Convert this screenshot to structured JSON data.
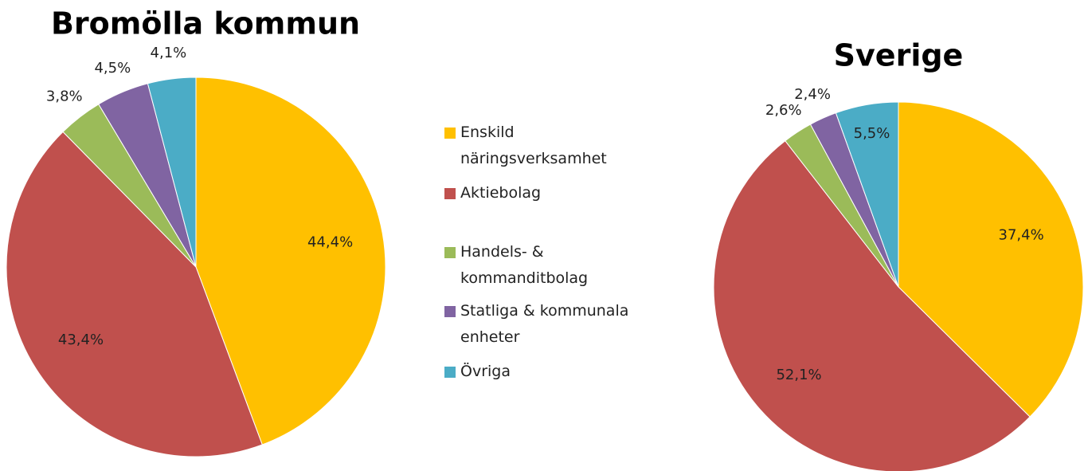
{
  "chart_data": [
    {
      "type": "pie",
      "title": "Bromölla kommun",
      "categories": [
        "Enskild näringsverksamhet",
        "Aktiebolag",
        "Handels- & kommanditbolag",
        "Statliga & kommunala enheter",
        "Övriga"
      ],
      "colors": [
        "#ffc000",
        "#c0504d",
        "#9bbb59",
        "#8064a2",
        "#4bacc6"
      ],
      "values": [
        44.4,
        43.4,
        3.8,
        4.5,
        4.1
      ],
      "value_labels": [
        "44,4%",
        "43,4%",
        "3,8%",
        "4,5%",
        "4,1%"
      ]
    },
    {
      "type": "pie",
      "title": "Sverige",
      "values": [
        37.4,
        52.1,
        2.6,
        2.4,
        5.5
      ],
      "value_labels": [
        "37,4%",
        "52,1%",
        "2,6%",
        "2,4%",
        "5,5%"
      ]
    }
  ]
}
